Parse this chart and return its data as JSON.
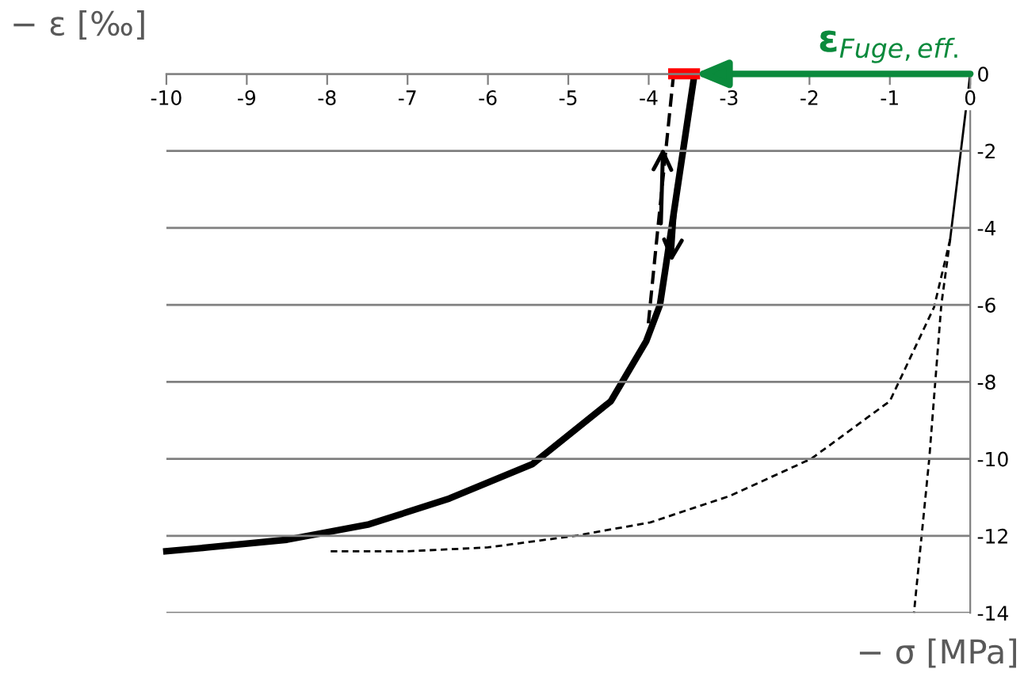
{
  "chart_data": {
    "type": "line",
    "xlabel": "− σ [MPa]",
    "ylabel": "− ε [‰]",
    "xlim": [
      -10,
      0
    ],
    "ylim": [
      -14,
      0
    ],
    "xticks": [
      -10,
      -9,
      -8,
      -7,
      -6,
      -5,
      -4,
      -3,
      -2,
      -1,
      0
    ],
    "yticks": [
      -14,
      -12,
      -10,
      -8,
      -6,
      -4,
      -2,
      0
    ],
    "grid": "y",
    "marker": "none",
    "series": [
      {
        "color": "#000000",
        "line_style": "solid",
        "x": [
          -3.43,
          -3.79,
          -3.86,
          -4.03,
          -4.47,
          -5.45,
          -6.48,
          -7.48,
          -8.5,
          -9.48,
          -10.0
        ],
        "values": [
          0,
          -5.04,
          -6.0,
          -6.94,
          -8.5,
          -10.14,
          -11.03,
          -11.7,
          -12.1,
          -12.3,
          -12.4
        ]
      },
      {
        "color": "#000000",
        "line_style": "dashed",
        "x": [
          -3.69,
          -3.9,
          -4.01
        ],
        "values": [
          0,
          -4.3,
          -6.6
        ]
      },
      {
        "color": "#000000",
        "line_style": "solid",
        "x": [
          0,
          -0.25
        ],
        "values": [
          0,
          -4.3
        ]
      },
      {
        "color": "#000000",
        "line_style": "dashed",
        "x": [
          -0.25,
          -0.45,
          -1.0,
          -1.98,
          -3.0,
          -3.98,
          -4.92,
          -6.0,
          -7.0,
          -8.01
        ],
        "values": [
          -4.3,
          -6.06,
          -8.5,
          -10.0,
          -10.97,
          -11.65,
          -12.0,
          -12.3,
          -12.4,
          -12.4
        ]
      },
      {
        "color": "#000000",
        "line_style": "dashed",
        "x": [
          -0.25,
          -0.36,
          -0.51,
          -0.7
        ],
        "values": [
          -4.3,
          -6.0,
          -10.0,
          -14.0
        ]
      },
      {
        "color": "#ff0000",
        "line_style": "solid",
        "x": [
          -3.69,
          -3.43
        ],
        "values": [
          0,
          0
        ]
      }
    ],
    "annotations": [
      {
        "text": "ε$_{Fuge,eff.}$",
        "x": -3.43,
        "y": 0
      }
    ]
  }
}
